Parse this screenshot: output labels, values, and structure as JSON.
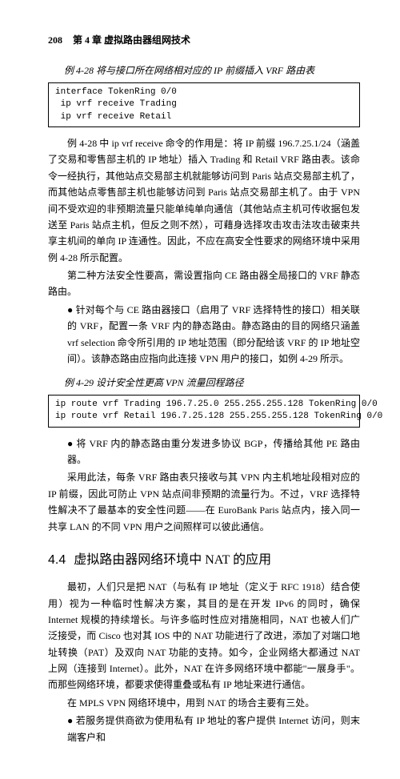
{
  "header": {
    "page_num": "208",
    "chapter": "第 4 章    虚拟路由器组网技术"
  },
  "ex428": {
    "label": "例 4-28    将与接口所在网络相对应的 IP 前缀插入 VRF 路由表",
    "code": "interface TokenRing 0/0\n ip vrf receive Trading\n ip vrf receive Retail"
  },
  "p1": "例 4-28 中 ip vrf receive 命令的作用是：将 IP 前缀 196.7.25.1/24（涵盖了交易和零售部主机的 IP 地址）插入 Trading 和 Retail VRF 路由表。该命令一经执行，其他站点交易部主机就能够访问到 Paris 站点交易部主机了，而其他站点零售部主机也能够访问到 Paris 站点交易部主机了。由于 VPN 间不受欢迎的非预期流量只能单纯单向通信（其他站点主机可传收据包发送至 Paris 站点主机，但反之则不然），可藉身选择攻击攻击法攻击破束共享主机间的单向 IP 连通性。因此，不应在高安全性要求的网络环境中采用例 4-28 所示配置。",
  "p2": "第二种方法安全性要高，需设置指向 CE 路由器全局接口的 VRF 静态路由。",
  "b1": "针对每个与 CE 路由器接口（启用了 VRF 选择特性的接口）相关联的 VRF，配置一条 VRF 内的静态路由。静态路由的目的网络只涵盖 vrf selection 命令所引用的 IP 地址范围（即分配给该 VRF 的 IP 地址空间）。该静态路由应指向此连接 VPN 用户的接口，如例 4-29 所示。",
  "ex429": {
    "label": "例 4-29    设计安全性更高 VPN 流量回程路径",
    "code": "ip route vrf Trading 196.7.25.0 255.255.255.128 TokenRing 0/0\nip route vrf Retail 196.7.25.128 255.255.255.128 TokenRing 0/0"
  },
  "b2": "将 VRF 内的静态路由重分发进多协议 BGP，传播给其他 PE 路由器。",
  "p3": "采用此法，每条 VRF 路由表只接收与其 VPN 内主机地址段相对应的 IP 前缀，因此可防止 VPN 站点间非预期的流量行为。不过，VRF 选择特性解决不了最基本的安全性问题——在 EuroBank Paris 站点内，接入同一共享 LAN 的不同 VPN 用户之间照样可以彼此通信。",
  "section": {
    "num": "4.4",
    "title": "虚拟路由器网络环境中 NAT 的应用"
  },
  "p4": "最初，人们只是把 NAT（与私有 IP 地址（定义于 RFC 1918）结合使用）视为一种临时性解决方案，其目的是在开发 IPv6 的同时，确保 Internet 规模的持续增长。与许多临时性应对措施相同，NAT 也被人们广泛接受，而 Cisco 也对其 IOS 中的 NAT 功能进行了改进，添加了对端口地址转换（PAT）及双向 NAT 功能的支持。如今，企业网络大都通过 NAT 上网（连接到 Internet）。此外，NAT 在许多网络环境中都能",
  "p4q": "\"一展身手\"",
  "p4b": "。而那些网络环境，都要求使得重叠或私有 IP 地址来进行通信。",
  "p5": "在 MPLS VPN 网络环境中，用到 NAT 的场合主要有三处。",
  "b3": "若服务提供商欲为使用私有 IP 地址的客户提供 Internet 访问，则末端客户和"
}
